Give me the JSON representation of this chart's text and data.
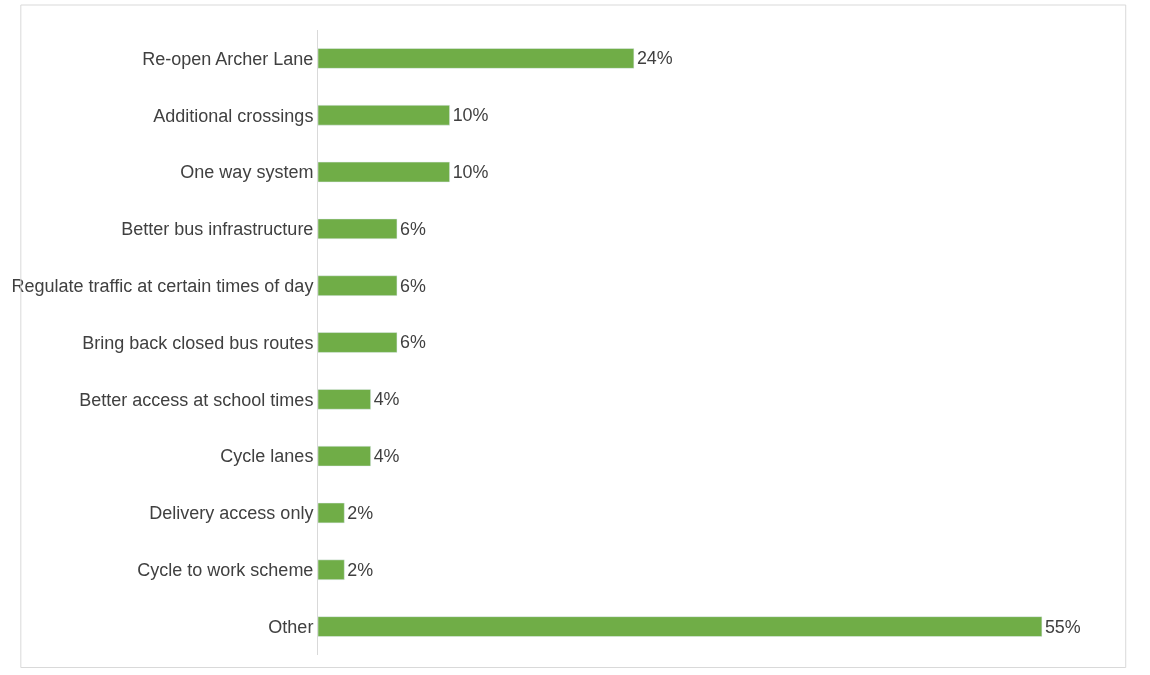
{
  "chart_data": {
    "type": "bar",
    "orientation": "horizontal",
    "categories": [
      "Re-open Archer Lane",
      "Additional crossings",
      "One way system",
      "Better bus infrastructure",
      "Regulate traffic at certain times of day",
      "Bring back closed bus routes",
      "Better access at school times",
      "Cycle lanes",
      "Delivery access only",
      "Cycle to work scheme",
      "Other"
    ],
    "values": [
      24,
      10,
      10,
      6,
      6,
      6,
      4,
      4,
      2,
      2,
      55
    ],
    "value_labels": [
      "24%",
      "10%",
      "10%",
      "6%",
      "6%",
      "6%",
      "4%",
      "4%",
      "2%",
      "2%",
      "55%"
    ],
    "color": "#70ad47",
    "legend": false,
    "tick_labels": "y"
  }
}
